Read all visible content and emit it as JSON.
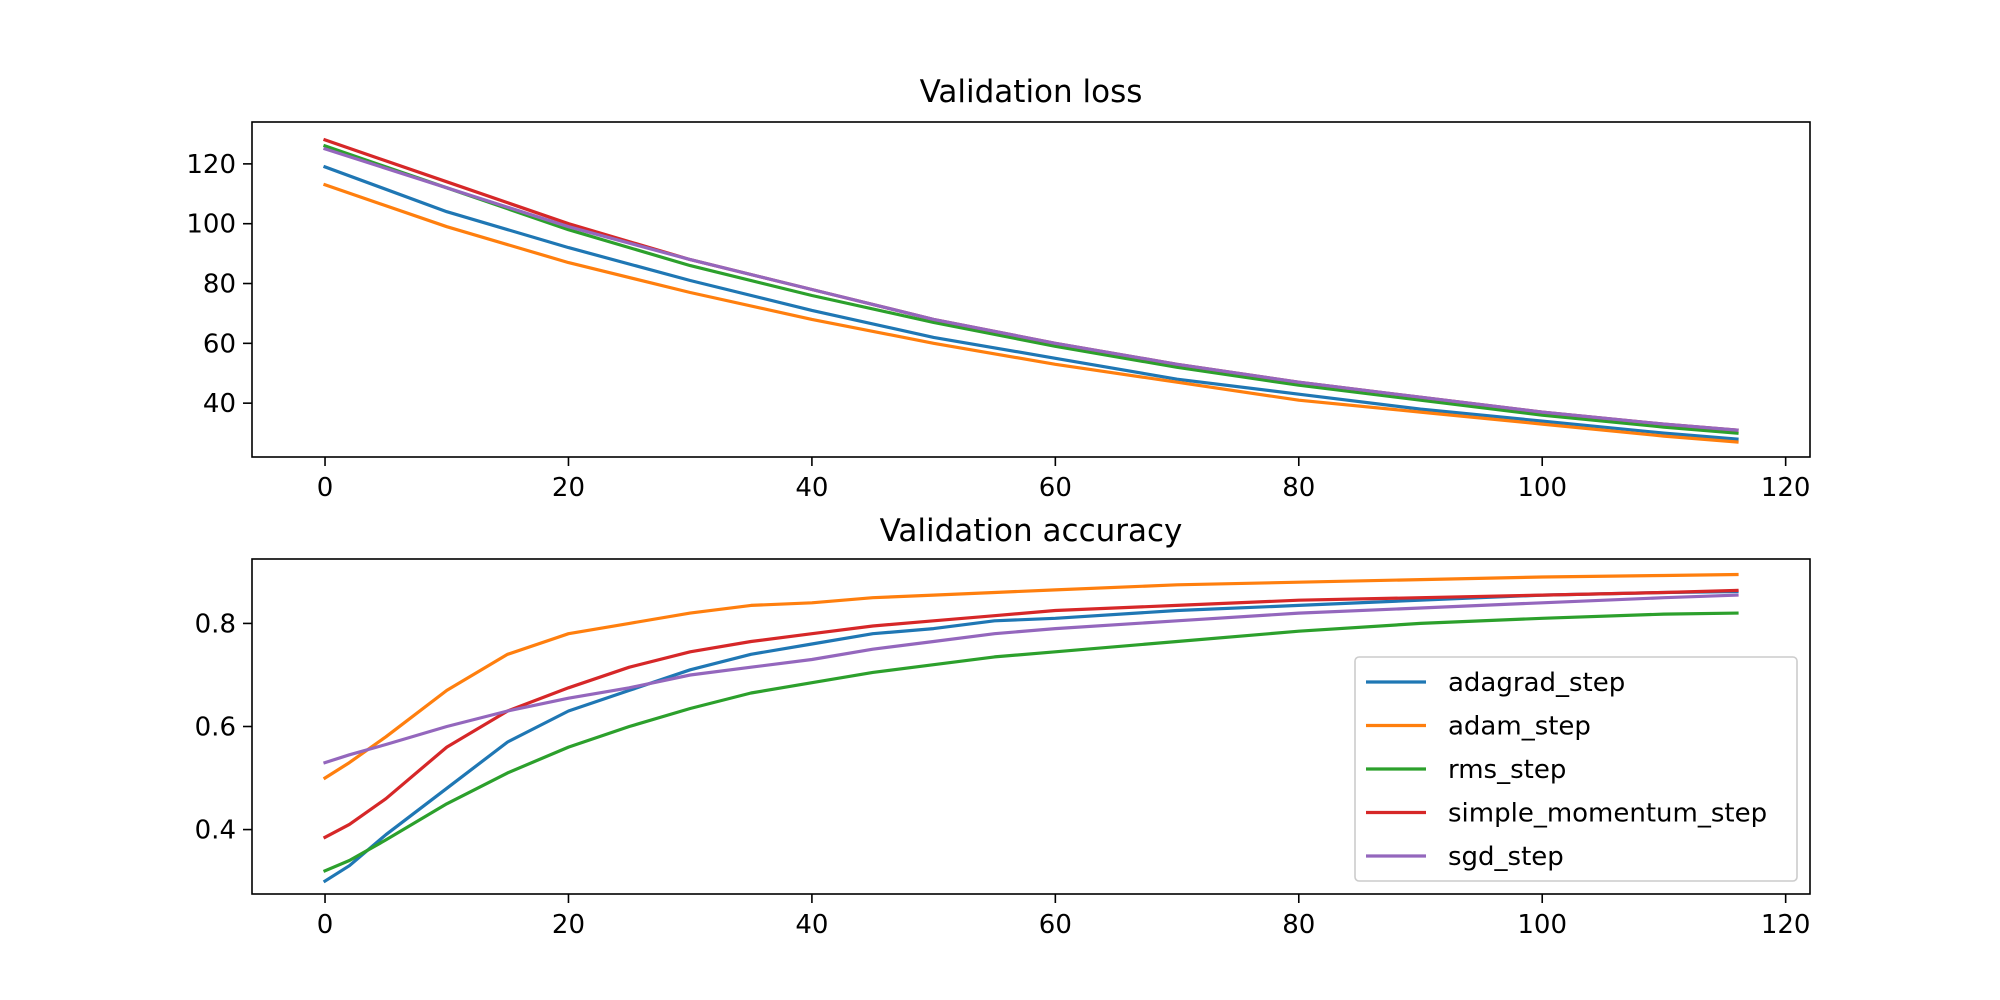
{
  "chart_data": [
    {
      "type": "line",
      "title": "Validation loss",
      "xlim": [
        -6,
        122
      ],
      "ylim": [
        22,
        134
      ],
      "xticks": [
        0,
        20,
        40,
        60,
        80,
        100,
        120
      ],
      "yticks": [
        40,
        60,
        80,
        100,
        120
      ],
      "grid": false,
      "legend": "none",
      "series": [
        {
          "name": "adagrad_step",
          "color": "#1f77b4",
          "x": [
            0,
            10,
            20,
            30,
            40,
            50,
            60,
            70,
            80,
            90,
            100,
            110,
            116
          ],
          "y": [
            119,
            104,
            92,
            81,
            71,
            62,
            55,
            48,
            43,
            38,
            34,
            30,
            28
          ]
        },
        {
          "name": "adam_step",
          "color": "#ff7f0e",
          "x": [
            0,
            10,
            20,
            30,
            40,
            50,
            60,
            70,
            80,
            90,
            100,
            110,
            116
          ],
          "y": [
            113,
            99,
            87,
            77,
            68,
            60,
            53,
            47,
            41,
            37,
            33,
            29,
            27
          ]
        },
        {
          "name": "rms_step",
          "color": "#2ca02c",
          "x": [
            0,
            10,
            20,
            30,
            40,
            50,
            60,
            70,
            80,
            90,
            100,
            110,
            116
          ],
          "y": [
            126,
            112,
            98,
            86,
            76,
            67,
            59,
            52,
            46,
            41,
            36,
            32,
            30
          ]
        },
        {
          "name": "simple_momentum_step",
          "color": "#d62728",
          "x": [
            0,
            10,
            20,
            30,
            40,
            50,
            60,
            70,
            80,
            90,
            100,
            110,
            116
          ],
          "y": [
            128,
            114,
            100,
            88,
            78,
            68,
            60,
            53,
            47,
            42,
            37,
            33,
            31
          ]
        },
        {
          "name": "sgd_step",
          "color": "#9467bd",
          "x": [
            0,
            10,
            20,
            30,
            40,
            50,
            60,
            70,
            80,
            90,
            100,
            110,
            116
          ],
          "y": [
            125,
            112,
            99,
            88,
            78,
            68,
            60,
            53,
            47,
            42,
            37,
            33,
            31
          ]
        }
      ]
    },
    {
      "type": "line",
      "title": "Validation accuracy",
      "xlim": [
        -6,
        122
      ],
      "ylim": [
        0.275,
        0.925
      ],
      "xticks": [
        0,
        20,
        40,
        60,
        80,
        100,
        120
      ],
      "yticks": [
        "0.4",
        "0.6",
        "0.8"
      ],
      "yticks_values": [
        0.4,
        0.6,
        0.8
      ],
      "grid": false,
      "legend": "lower right",
      "series": [
        {
          "name": "adagrad_step",
          "color": "#1f77b4",
          "x": [
            0,
            2,
            5,
            10,
            15,
            20,
            25,
            30,
            35,
            40,
            45,
            50,
            55,
            60,
            70,
            80,
            90,
            100,
            110,
            116
          ],
          "y": [
            0.3,
            0.33,
            0.39,
            0.48,
            0.57,
            0.63,
            0.67,
            0.71,
            0.74,
            0.76,
            0.78,
            0.79,
            0.805,
            0.81,
            0.825,
            0.835,
            0.845,
            0.855,
            0.86,
            0.862
          ]
        },
        {
          "name": "adam_step",
          "color": "#ff7f0e",
          "x": [
            0,
            2,
            5,
            10,
            15,
            20,
            25,
            30,
            35,
            40,
            45,
            50,
            55,
            60,
            70,
            80,
            90,
            100,
            110,
            116
          ],
          "y": [
            0.5,
            0.53,
            0.58,
            0.67,
            0.74,
            0.78,
            0.8,
            0.82,
            0.835,
            0.84,
            0.85,
            0.855,
            0.86,
            0.865,
            0.875,
            0.88,
            0.885,
            0.89,
            0.893,
            0.895
          ]
        },
        {
          "name": "rms_step",
          "color": "#2ca02c",
          "x": [
            0,
            2,
            5,
            10,
            15,
            20,
            25,
            30,
            35,
            40,
            45,
            50,
            55,
            60,
            70,
            80,
            90,
            100,
            110,
            116
          ],
          "y": [
            0.32,
            0.34,
            0.38,
            0.45,
            0.51,
            0.56,
            0.6,
            0.635,
            0.665,
            0.685,
            0.705,
            0.72,
            0.735,
            0.745,
            0.765,
            0.785,
            0.8,
            0.81,
            0.818,
            0.82
          ]
        },
        {
          "name": "simple_momentum_step",
          "color": "#d62728",
          "x": [
            0,
            2,
            5,
            10,
            15,
            20,
            25,
            30,
            35,
            40,
            45,
            50,
            55,
            60,
            70,
            80,
            90,
            100,
            110,
            116
          ],
          "y": [
            0.385,
            0.41,
            0.46,
            0.56,
            0.63,
            0.675,
            0.715,
            0.745,
            0.765,
            0.78,
            0.795,
            0.805,
            0.815,
            0.825,
            0.835,
            0.845,
            0.85,
            0.855,
            0.86,
            0.864
          ]
        },
        {
          "name": "sgd_step",
          "color": "#9467bd",
          "x": [
            0,
            2,
            5,
            10,
            15,
            20,
            25,
            30,
            35,
            40,
            45,
            50,
            55,
            60,
            70,
            80,
            90,
            100,
            110,
            116
          ],
          "y": [
            0.53,
            0.545,
            0.565,
            0.6,
            0.63,
            0.655,
            0.675,
            0.7,
            0.715,
            0.73,
            0.75,
            0.765,
            0.78,
            0.79,
            0.805,
            0.82,
            0.83,
            0.84,
            0.85,
            0.855
          ]
        }
      ]
    }
  ]
}
